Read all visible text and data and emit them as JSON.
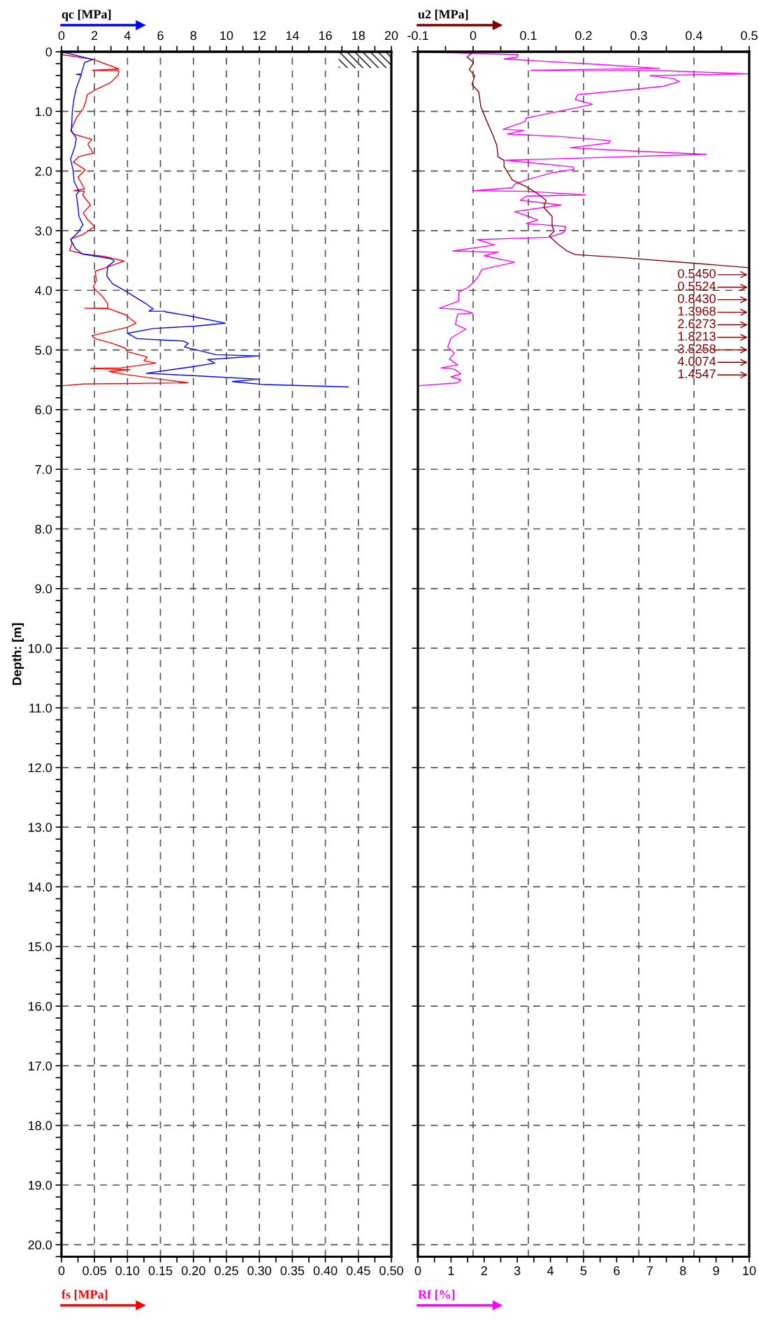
{
  "chart_data": [
    {
      "type": "line",
      "orientation": "horizontal",
      "ylabel": "Depth: [m]",
      "ylim": [
        20.2,
        0
      ],
      "yticks": [
        0,
        {
          "value": 0.2,
          "label": null
        },
        {
          "value": 0.4,
          "label": null
        },
        {
          "value": 0.6,
          "label": null
        },
        {
          "value": 0.8,
          "label": null
        },
        {
          "value": 1,
          "label": "1.0"
        },
        {
          "value": 1.2,
          "label": null
        },
        {
          "value": 1.4,
          "label": null
        },
        {
          "value": 1.6,
          "label": null
        },
        {
          "value": 1.8,
          "label": null
        },
        {
          "value": 2,
          "label": "2.0"
        },
        {
          "value": 2.2,
          "label": null
        },
        {
          "value": 2.4,
          "label": null
        },
        {
          "value": 2.6,
          "label": null
        },
        {
          "value": 2.8,
          "label": null
        },
        {
          "value": 3,
          "label": "3.0"
        },
        {
          "value": 3.2,
          "label": null
        },
        {
          "value": 3.4,
          "label": null
        },
        {
          "value": 3.6,
          "label": null
        },
        {
          "value": 3.8,
          "label": null
        },
        {
          "value": 4,
          "label": "4.0"
        },
        {
          "value": 4.2,
          "label": null
        },
        {
          "value": 4.4,
          "label": null
        },
        {
          "value": 4.6,
          "label": null
        },
        {
          "value": 4.8,
          "label": null
        },
        {
          "value": 5,
          "label": "5.0"
        },
        {
          "value": 5.2,
          "label": null
        },
        {
          "value": 5.4,
          "label": null
        },
        {
          "value": 5.6,
          "label": null
        },
        {
          "value": 5.8,
          "label": null
        },
        {
          "value": 6,
          "label": "6.0"
        },
        {
          "value": 6.2,
          "label": null
        },
        {
          "value": 6.4,
          "label": null
        },
        {
          "value": 6.6,
          "label": null
        },
        {
          "value": 6.8,
          "label": null
        },
        {
          "value": 7,
          "label": "7.0"
        },
        {
          "value": 7.2,
          "label": null
        },
        {
          "value": 7.4,
          "label": null
        },
        {
          "value": 7.6,
          "label": null
        },
        {
          "value": 7.8,
          "label": null
        },
        {
          "value": 8,
          "label": "8.0"
        },
        {
          "value": 8.2,
          "label": null
        },
        {
          "value": 8.4,
          "label": null
        },
        {
          "value": 8.6,
          "label": null
        },
        {
          "value": 8.8,
          "label": null
        },
        {
          "value": 9,
          "label": "9.0"
        },
        {
          "value": 9.2,
          "label": null
        },
        {
          "value": 9.4,
          "label": null
        },
        {
          "value": 9.6,
          "label": null
        },
        {
          "value": 9.8,
          "label": null
        },
        {
          "value": 10,
          "label": "10.0"
        },
        {
          "value": 10.2,
          "label": null
        },
        {
          "value": 10.4,
          "label": null
        },
        {
          "value": 10.6,
          "label": null
        },
        {
          "value": 10.8,
          "label": null
        },
        {
          "value": 11,
          "label": "11.0"
        },
        {
          "value": 11.2,
          "label": null
        },
        {
          "value": 11.4,
          "label": null
        },
        {
          "value": 11.6,
          "label": null
        },
        {
          "value": 11.8,
          "label": null
        },
        {
          "value": 12,
          "label": "12.0"
        },
        {
          "value": 12.2,
          "label": null
        },
        {
          "value": 12.4,
          "label": null
        },
        {
          "value": 12.6,
          "label": null
        },
        {
          "value": 12.8,
          "label": null
        },
        {
          "value": 13,
          "label": "13.0"
        },
        {
          "value": 13.2,
          "label": null
        },
        {
          "value": 13.4,
          "label": null
        },
        {
          "value": 13.6,
          "label": null
        },
        {
          "value": 13.8,
          "label": null
        },
        {
          "value": 14,
          "label": "14.0"
        },
        {
          "value": 14.2,
          "label": null
        },
        {
          "value": 14.4,
          "label": null
        },
        {
          "value": 14.6,
          "label": null
        },
        {
          "value": 14.8,
          "label": null
        },
        {
          "value": 15,
          "label": "15.0"
        },
        {
          "value": 15.2,
          "label": null
        },
        {
          "value": 15.4,
          "label": null
        },
        {
          "value": 15.6,
          "label": null
        },
        {
          "value": 15.8,
          "label": null
        },
        {
          "value": 16,
          "label": "16.0"
        },
        {
          "value": 16.2,
          "label": null
        },
        {
          "value": 16.4,
          "label": null
        },
        {
          "value": 16.6,
          "label": null
        },
        {
          "value": 16.8,
          "label": null
        },
        {
          "value": 17,
          "label": "17.0"
        },
        {
          "value": 17.2,
          "label": null
        },
        {
          "value": 17.4,
          "label": null
        },
        {
          "value": 17.6,
          "label": null
        },
        {
          "value": 17.8,
          "label": null
        },
        {
          "value": 18,
          "label": "18.0"
        },
        {
          "value": 18.2,
          "label": null
        },
        {
          "value": 18.4,
          "label": null
        },
        {
          "value": 18.6,
          "label": null
        },
        {
          "value": 18.8,
          "label": null
        },
        {
          "value": 19,
          "label": "19.0"
        },
        {
          "value": 19.2,
          "label": null
        },
        {
          "value": 19.4,
          "label": null
        },
        {
          "value": 19.6,
          "label": null
        },
        {
          "value": 19.8,
          "label": null
        },
        {
          "value": 20,
          "label": "20.0"
        },
        {
          "value": 20.2,
          "label": null
        }
      ],
      "x2lim": [
        0,
        20
      ],
      "x2ticks": [
        0,
        {
          "value": 1,
          "label": null
        },
        2,
        {
          "value": 3,
          "label": null
        },
        4,
        {
          "value": 5,
          "label": null
        },
        6,
        {
          "value": 7,
          "label": null
        },
        8,
        {
          "value": 9,
          "label": null
        },
        10,
        {
          "value": 11,
          "label": null
        },
        12,
        {
          "value": 13,
          "label": null
        },
        14,
        {
          "value": 15,
          "label": null
        },
        16,
        {
          "value": 17,
          "label": null
        },
        18,
        {
          "value": 19,
          "label": null
        },
        20
      ],
      "xlim": [
        0,
        0.5
      ],
      "xticks": [
        0,
        {
          "value": 0.025,
          "label": null
        },
        0.05,
        {
          "value": 0.075,
          "label": null
        },
        {
          "value": 0.1,
          "label": "0.10"
        },
        {
          "value": 0.125,
          "label": null
        },
        0.15,
        {
          "value": 0.175,
          "label": null
        },
        {
          "value": 0.2,
          "label": "0.20"
        },
        {
          "value": 0.225,
          "label": null
        },
        0.25,
        {
          "value": 0.275,
          "label": null
        },
        {
          "value": 0.3,
          "label": "0.30"
        },
        {
          "value": 0.325,
          "label": null
        },
        0.35,
        {
          "value": 0.375,
          "label": null
        },
        {
          "value": 0.4,
          "label": "0.40"
        },
        {
          "value": 0.425,
          "label": null
        },
        0.45,
        {
          "value": 0.475,
          "label": null
        },
        {
          "value": 0.5,
          "label": "0.50"
        }
      ],
      "grid": true,
      "series": [
        {
          "name": "qc [MPa]",
          "color": "#0000ff",
          "axis": "x2",
          "x": [
            0,
            0.13,
            0.18,
            0.37,
            0.38,
            0.39,
            0.61,
            0.8,
            0.99,
            1.32,
            1.45,
            1.6,
            1.8,
            1.98,
            2.18,
            2.34,
            2.4,
            2.6,
            2.76,
            2.9,
            3.03,
            3.15,
            3.3,
            3.39,
            3.47,
            3.51,
            3.6,
            3.76,
            3.89,
            4.01,
            4.1,
            4.22,
            4.31,
            4.35,
            4.35,
            4.36,
            4.43,
            4.55,
            4.6,
            4.64,
            4.72,
            4.81,
            4.85,
            4.89,
            4.95,
            5.03,
            5.08,
            5.1,
            5.16,
            5.22,
            5.28,
            5.39,
            5.43,
            5.49,
            5.53,
            5.58,
            5.62
          ],
          "values": [
            0,
            1.9,
            1.4,
            1.2,
            0.9,
            1.2,
            0.9,
            0.75,
            0.66,
            0.6,
            0.9,
            0.8,
            0.55,
            0.7,
            0.77,
            1.06,
            0.9,
            1.0,
            1.06,
            1.3,
            1.0,
            0.56,
            0.85,
            1.27,
            3.0,
            3.2,
            2.8,
            2.75,
            3.1,
            3.87,
            4.4,
            5.1,
            5.56,
            5.3,
            6.3,
            6.3,
            7.8,
            9.93,
            8.1,
            5.56,
            4.0,
            4.58,
            7.39,
            7.68,
            7.46,
            8.66,
            9.37,
            12.0,
            8.87,
            9.3,
            7.96,
            5.14,
            7.96,
            12.0,
            10.35,
            12.3,
            17.4
          ]
        },
        {
          "name": "fs [MPa]",
          "color": "#ff0000",
          "x": [
            0,
            0.05,
            0.13,
            0.29,
            0.31,
            0.32,
            0.39,
            0.52,
            0.64,
            0.72,
            0.83,
            0.95,
            1.1,
            1.32,
            1.38,
            1.47,
            1.55,
            1.7,
            1.76,
            1.85,
            1.98,
            2.1,
            2.3,
            2.33,
            2.34,
            2.4,
            2.57,
            2.7,
            2.82,
            2.93,
            3.06,
            3.14,
            3.22,
            3.33,
            3.39,
            3.43,
            3.51,
            3.62,
            3.68,
            3.83,
            3.95,
            4.1,
            4.22,
            4.3,
            4.3,
            4.31,
            4.41,
            4.55,
            4.62,
            4.76,
            4.81,
            4.89,
            4.97,
            5.03,
            5.08,
            5.12,
            5.18,
            5.22,
            5.3,
            5.31,
            5.33,
            5.36,
            5.41,
            5.49,
            5.55,
            5.57,
            5.6
          ],
          "values": [
            0,
            0.002,
            0.049,
            0.087,
            0.047,
            0.087,
            0.086,
            0.074,
            0.051,
            0.039,
            0.037,
            0.033,
            0.023,
            0.014,
            0.018,
            0.046,
            0.04,
            0.048,
            0.026,
            0.018,
            0.036,
            0.025,
            0.035,
            0.019,
            0.035,
            0.032,
            0.044,
            0.033,
            0.04,
            0.05,
            0.033,
            0.014,
            0.016,
            0.012,
            0.033,
            0.065,
            0.095,
            0.067,
            0.051,
            0.053,
            0.048,
            0.062,
            0.07,
            0.07,
            0.035,
            0.072,
            0.097,
            0.113,
            0.1,
            0.046,
            0.051,
            0.077,
            0.097,
            0.1,
            0.118,
            0.13,
            0.125,
            0.143,
            0.09,
            0.044,
            0.104,
            0.072,
            0.097,
            0.15,
            0.192,
            0.033,
            0
          ]
        }
      ]
    },
    {
      "type": "line",
      "orientation": "horizontal",
      "ylim": [
        20.2,
        0
      ],
      "tick_labels": "x",
      "yticks": [
        0,
        1,
        2,
        3,
        4,
        5,
        6,
        7,
        8,
        9,
        10,
        11,
        12,
        13,
        14,
        15,
        16,
        17,
        18,
        19,
        20
      ],
      "x2lim": [
        -0.1,
        0.5
      ],
      "x2ticks": [
        -0.1,
        {
          "value": -0.05,
          "label": null
        },
        0,
        {
          "value": 0.05,
          "label": null
        },
        0.1,
        {
          "value": 0.15,
          "label": null
        },
        0.2,
        {
          "value": 0.25,
          "label": null
        },
        0.3,
        {
          "value": 0.35,
          "label": null
        },
        0.4,
        {
          "value": 0.45,
          "label": null
        },
        0.5
      ],
      "xlim": [
        0,
        10
      ],
      "xticks": [
        0,
        {
          "value": 0.5,
          "label": null
        },
        1,
        {
          "value": 1.5,
          "label": null
        },
        2,
        {
          "value": 2.5,
          "label": null
        },
        3,
        {
          "value": 3.5,
          "label": null
        },
        4,
        {
          "value": 4.5,
          "label": null
        },
        5,
        {
          "value": 5.5,
          "label": null
        },
        6,
        {
          "value": 6.5,
          "label": null
        },
        7,
        {
          "value": 7.5,
          "label": null
        },
        8,
        {
          "value": 8.5,
          "label": null
        },
        9,
        {
          "value": 9.5,
          "label": null
        },
        10
      ],
      "grid": true,
      "annotations": [
        "0.5450",
        "0.5524",
        "0.8430",
        "1.3968",
        "2.6273",
        "1.8213",
        "3.5258",
        "4.0074",
        "1.4547"
      ],
      "series": [
        {
          "name": "u2 [MPa]",
          "color": "#800000",
          "axis": "x2",
          "x": [
            0,
            0.09,
            0.18,
            0.3,
            0.4,
            0.55,
            0.67,
            0.92,
            1.15,
            1.38,
            1.57,
            1.76,
            1.82,
            1.92,
            2.15,
            2.26,
            2.38,
            2.49,
            2.61,
            2.76,
            2.92,
            3.01,
            3.09,
            3.22,
            3.34,
            3.4,
            3.45,
            3.62,
            5.63
          ],
          "values": [
            0.001,
            -0.011,
            0.001,
            -0.007,
            0.003,
            -0.002,
            0.01,
            0.014,
            0.024,
            0.035,
            0.043,
            0.045,
            0.056,
            0.056,
            0.071,
            0.096,
            0.117,
            0.132,
            0.128,
            0.143,
            0.143,
            0.147,
            0.138,
            0.153,
            0.17,
            0.185,
            0.269,
            0.5,
            0.5
          ]
        },
        {
          "name": "Rf [%]",
          "color": "#ff00ff",
          "x": [
            0,
            0.05,
            0.09,
            0.12,
            0.22,
            0.28,
            0.31,
            0.32,
            0.37,
            0.4,
            0.45,
            0.5,
            0.58,
            0.65,
            0.72,
            0.8,
            0.88,
            0.95,
            1.11,
            1.17,
            1.3,
            1.32,
            1.38,
            1.42,
            1.49,
            1.53,
            1.61,
            1.65,
            1.72,
            1.82,
            1.93,
            1.97,
            2.03,
            2.15,
            2.22,
            2.28,
            2.33,
            2.34,
            2.36,
            2.4,
            2.42,
            2.49,
            2.57,
            2.68,
            2.76,
            2.82,
            2.88,
            2.93,
            3.03,
            3.11,
            3.15,
            3.24,
            3.34,
            3.36,
            3.42,
            3.53,
            3.65,
            3.76,
            3.86,
            3.95,
            4.03,
            4.18,
            4.3,
            4.32,
            4.38,
            4.4,
            4.57,
            4.65,
            4.8,
            4.95,
            5.05,
            5.15,
            5.25,
            5.3,
            5.32,
            5.4,
            5.45,
            5.5,
            5.55,
            5.6
          ],
          "values": [
            0,
            3.02,
            3.0,
            2.6,
            5.66,
            7.3,
            3.41,
            7.5,
            10,
            7.0,
            7.7,
            7.9,
            7.4,
            6.15,
            4.82,
            4.75,
            5.27,
            4.68,
            3.27,
            3.23,
            2.57,
            3.2,
            2.7,
            4.25,
            5.8,
            5.77,
            4.6,
            5.94,
            8.7,
            2.64,
            4.68,
            4.71,
            4.04,
            3.27,
            2.92,
            2.85,
            1.67,
            3.3,
            3.9,
            5.06,
            3.27,
            3.09,
            4.32,
            2.92,
            3.34,
            3.62,
            3.27,
            4.47,
            4.4,
            3.97,
            1.79,
            2.32,
            1.05,
            2.43,
            2.0,
            2.92,
            1.93,
            1.83,
            1.69,
            1.51,
            1.23,
            1.23,
            0.65,
            1.3,
            1.65,
            1.2,
            1.13,
            1.44,
            1.0,
            0.9,
            1.1,
            0.95,
            1.2,
            0.7,
            1.1,
            1.3,
            1.0,
            1.3,
            1.2,
            0
          ]
        }
      ]
    }
  ]
}
